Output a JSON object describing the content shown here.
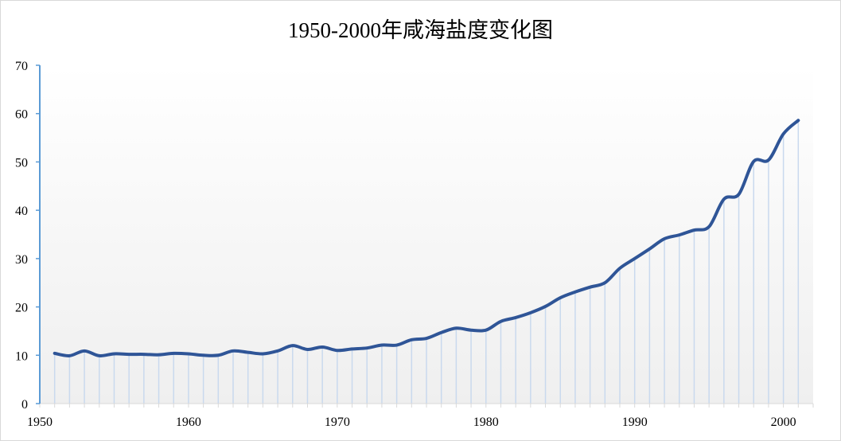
{
  "chart_data": {
    "type": "line",
    "title": "1950-2000年咸海盐度变化图",
    "xlabel": "",
    "ylabel": "",
    "xlim": [
      1950,
      2002
    ],
    "ylim": [
      0,
      70
    ],
    "x_ticks": [
      1950,
      1960,
      1970,
      1980,
      1990,
      2000
    ],
    "y_ticks": [
      0,
      10,
      20,
      30,
      40,
      50,
      60,
      70
    ],
    "grid": false,
    "drop_lines": true,
    "smooth": true,
    "legend": null,
    "colors": {
      "line": "#2f5597",
      "axis": "#5b9bd5",
      "drop_line": "#c9d9ee"
    },
    "x": [
      1951,
      1952,
      1953,
      1954,
      1955,
      1956,
      1957,
      1958,
      1959,
      1960,
      1961,
      1962,
      1963,
      1964,
      1965,
      1966,
      1967,
      1968,
      1969,
      1970,
      1971,
      1972,
      1973,
      1974,
      1975,
      1976,
      1977,
      1978,
      1979,
      1980,
      1981,
      1982,
      1983,
      1984,
      1985,
      1986,
      1987,
      1988,
      1989,
      1990,
      1991,
      1992,
      1993,
      1994,
      1995,
      1996,
      1997,
      1998,
      1999,
      2000,
      2001
    ],
    "series": [
      {
        "name": "咸海盐度",
        "values": [
          10.4,
          9.9,
          10.9,
          9.9,
          10.3,
          10.2,
          10.2,
          10.1,
          10.4,
          10.3,
          10.0,
          10.0,
          10.9,
          10.6,
          10.3,
          10.9,
          12.0,
          11.2,
          11.7,
          11.0,
          11.3,
          11.5,
          12.1,
          12.1,
          13.2,
          13.5,
          14.7,
          15.6,
          15.2,
          15.2,
          17.0,
          17.8,
          18.8,
          20.1,
          21.9,
          23.1,
          24.1,
          25.0,
          28.0,
          30.0,
          32.0,
          34.1,
          34.9,
          35.9,
          36.6,
          42.3,
          43.3,
          50.1,
          50.4,
          55.8,
          58.6
        ]
      }
    ]
  }
}
